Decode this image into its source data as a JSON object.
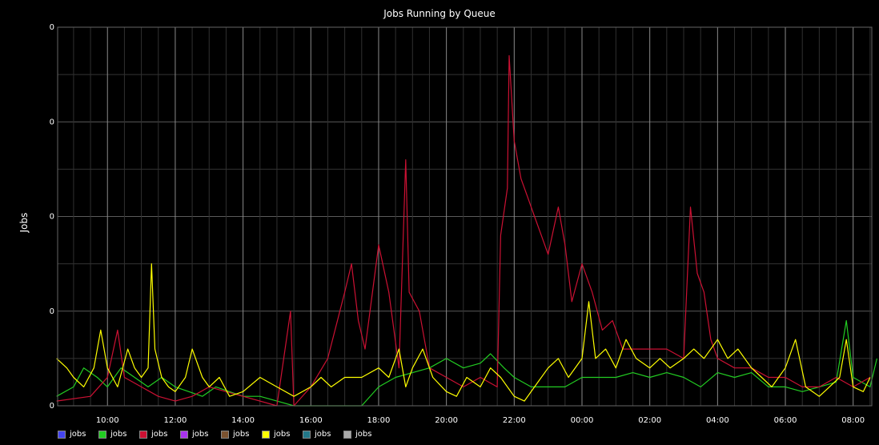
{
  "chart_data": {
    "type": "line",
    "title": "Jobs Running by Queue",
    "ylabel": "Jobs",
    "y_tick_labels": [
      "0",
      "0",
      "0",
      "0",
      "0"
    ],
    "x_tick_labels": [
      "10:00",
      "12:00",
      "14:00",
      "16:00",
      "18:00",
      "20:00",
      "22:00",
      "00:00",
      "02:00",
      "04:00",
      "06:00",
      "08:00"
    ],
    "ylim": [
      0,
      4
    ],
    "background": "#000000",
    "grid": true,
    "legend_position": "bottom-left",
    "series": [
      {
        "name": "jobs",
        "color": "#4444ee",
        "values": []
      },
      {
        "name": "jobs",
        "color": "#22cc22",
        "values": [
          [
            8.5,
            0.1
          ],
          [
            9.0,
            0.2
          ],
          [
            9.3,
            0.4
          ],
          [
            9.7,
            0.3
          ],
          [
            10.0,
            0.2
          ],
          [
            10.4,
            0.4
          ],
          [
            10.8,
            0.3
          ],
          [
            11.2,
            0.2
          ],
          [
            11.6,
            0.3
          ],
          [
            12.0,
            0.2
          ],
          [
            12.4,
            0.15
          ],
          [
            12.8,
            0.1
          ],
          [
            13.2,
            0.2
          ],
          [
            13.6,
            0.15
          ],
          [
            14.0,
            0.1
          ],
          [
            14.5,
            0.1
          ],
          [
            15.0,
            0.05
          ],
          [
            15.5,
            0.0
          ],
          [
            16.0,
            0.0
          ],
          [
            16.5,
            0.0
          ],
          [
            17.0,
            0.0
          ],
          [
            17.5,
            0.0
          ],
          [
            18.0,
            0.2
          ],
          [
            18.5,
            0.3
          ],
          [
            19.0,
            0.35
          ],
          [
            19.5,
            0.4
          ],
          [
            20.0,
            0.5
          ],
          [
            20.5,
            0.4
          ],
          [
            21.0,
            0.45
          ],
          [
            21.3,
            0.55
          ],
          [
            21.7,
            0.4
          ],
          [
            22.0,
            0.3
          ],
          [
            22.5,
            0.2
          ],
          [
            23.0,
            0.2
          ],
          [
            23.5,
            0.2
          ],
          [
            24.0,
            0.3
          ],
          [
            24.5,
            0.3
          ],
          [
            25.0,
            0.3
          ],
          [
            25.5,
            0.35
          ],
          [
            26.0,
            0.3
          ],
          [
            26.5,
            0.35
          ],
          [
            27.0,
            0.3
          ],
          [
            27.5,
            0.2
          ],
          [
            28.0,
            0.35
          ],
          [
            28.5,
            0.3
          ],
          [
            29.0,
            0.35
          ],
          [
            29.5,
            0.2
          ],
          [
            30.0,
            0.2
          ],
          [
            30.5,
            0.15
          ],
          [
            31.0,
            0.2
          ],
          [
            31.5,
            0.25
          ],
          [
            31.8,
            0.9
          ],
          [
            32.0,
            0.3
          ],
          [
            32.5,
            0.2
          ],
          [
            32.7,
            0.5
          ]
        ]
      },
      {
        "name": "jobs",
        "color": "#cc1133",
        "values": [
          [
            8.5,
            0.05
          ],
          [
            9.5,
            0.1
          ],
          [
            10.0,
            0.3
          ],
          [
            10.3,
            0.8
          ],
          [
            10.5,
            0.3
          ],
          [
            11.0,
            0.2
          ],
          [
            11.5,
            0.1
          ],
          [
            12.0,
            0.05
          ],
          [
            12.5,
            0.1
          ],
          [
            13.0,
            0.2
          ],
          [
            14.0,
            0.1
          ],
          [
            15.0,
            0.0
          ],
          [
            15.4,
            1.0
          ],
          [
            15.5,
            0.0
          ],
          [
            16.0,
            0.2
          ],
          [
            16.5,
            0.5
          ],
          [
            17.0,
            1.2
          ],
          [
            17.2,
            1.5
          ],
          [
            17.4,
            0.9
          ],
          [
            17.6,
            0.6
          ],
          [
            18.0,
            1.7
          ],
          [
            18.3,
            1.2
          ],
          [
            18.6,
            0.4
          ],
          [
            18.8,
            2.6
          ],
          [
            18.9,
            1.2
          ],
          [
            19.2,
            1.0
          ],
          [
            19.5,
            0.4
          ],
          [
            20.0,
            0.3
          ],
          [
            20.5,
            0.2
          ],
          [
            21.0,
            0.3
          ],
          [
            21.5,
            0.2
          ],
          [
            21.6,
            1.8
          ],
          [
            21.8,
            2.3
          ],
          [
            21.85,
            3.7
          ],
          [
            22.0,
            2.8
          ],
          [
            22.2,
            2.4
          ],
          [
            22.4,
            2.2
          ],
          [
            22.6,
            2.0
          ],
          [
            22.8,
            1.8
          ],
          [
            23.0,
            1.6
          ],
          [
            23.3,
            2.1
          ],
          [
            23.5,
            1.7
          ],
          [
            23.7,
            1.1
          ],
          [
            24.0,
            1.5
          ],
          [
            24.3,
            1.2
          ],
          [
            24.6,
            0.8
          ],
          [
            24.9,
            0.9
          ],
          [
            25.2,
            0.6
          ],
          [
            25.5,
            0.6
          ],
          [
            26.0,
            0.6
          ],
          [
            26.5,
            0.6
          ],
          [
            27.0,
            0.5
          ],
          [
            27.2,
            2.1
          ],
          [
            27.4,
            1.4
          ],
          [
            27.6,
            1.2
          ],
          [
            27.8,
            0.7
          ],
          [
            28.0,
            0.5
          ],
          [
            28.5,
            0.4
          ],
          [
            29.0,
            0.4
          ],
          [
            29.5,
            0.3
          ],
          [
            30.0,
            0.3
          ],
          [
            30.5,
            0.2
          ],
          [
            31.0,
            0.2
          ],
          [
            31.5,
            0.3
          ],
          [
            32.0,
            0.2
          ],
          [
            32.5,
            0.3
          ]
        ]
      },
      {
        "name": "jobs",
        "color": "#aa33ee",
        "values": []
      },
      {
        "name": "jobs",
        "color": "#7a5230",
        "values": []
      },
      {
        "name": "jobs",
        "color": "#ffff00",
        "values": [
          [
            8.5,
            0.5
          ],
          [
            8.8,
            0.4
          ],
          [
            9.0,
            0.3
          ],
          [
            9.3,
            0.2
          ],
          [
            9.6,
            0.4
          ],
          [
            9.8,
            0.8
          ],
          [
            10.0,
            0.4
          ],
          [
            10.3,
            0.2
          ],
          [
            10.6,
            0.6
          ],
          [
            10.8,
            0.4
          ],
          [
            11.0,
            0.3
          ],
          [
            11.2,
            0.4
          ],
          [
            11.3,
            1.5
          ],
          [
            11.4,
            0.6
          ],
          [
            11.6,
            0.3
          ],
          [
            11.8,
            0.2
          ],
          [
            12.0,
            0.15
          ],
          [
            12.3,
            0.3
          ],
          [
            12.5,
            0.6
          ],
          [
            12.8,
            0.3
          ],
          [
            13.0,
            0.2
          ],
          [
            13.3,
            0.3
          ],
          [
            13.6,
            0.1
          ],
          [
            14.0,
            0.15
          ],
          [
            14.5,
            0.3
          ],
          [
            15.0,
            0.2
          ],
          [
            15.5,
            0.1
          ],
          [
            16.0,
            0.2
          ],
          [
            16.3,
            0.3
          ],
          [
            16.6,
            0.2
          ],
          [
            17.0,
            0.3
          ],
          [
            17.5,
            0.3
          ],
          [
            18.0,
            0.4
          ],
          [
            18.3,
            0.3
          ],
          [
            18.6,
            0.6
          ],
          [
            18.8,
            0.2
          ],
          [
            19.0,
            0.4
          ],
          [
            19.3,
            0.6
          ],
          [
            19.6,
            0.3
          ],
          [
            20.0,
            0.15
          ],
          [
            20.3,
            0.1
          ],
          [
            20.6,
            0.3
          ],
          [
            21.0,
            0.2
          ],
          [
            21.3,
            0.4
          ],
          [
            21.6,
            0.3
          ],
          [
            22.0,
            0.1
          ],
          [
            22.3,
            0.05
          ],
          [
            22.6,
            0.2
          ],
          [
            23.0,
            0.4
          ],
          [
            23.3,
            0.5
          ],
          [
            23.6,
            0.3
          ],
          [
            24.0,
            0.5
          ],
          [
            24.2,
            1.1
          ],
          [
            24.4,
            0.5
          ],
          [
            24.7,
            0.6
          ],
          [
            25.0,
            0.4
          ],
          [
            25.3,
            0.7
          ],
          [
            25.6,
            0.5
          ],
          [
            26.0,
            0.4
          ],
          [
            26.3,
            0.5
          ],
          [
            26.6,
            0.4
          ],
          [
            27.0,
            0.5
          ],
          [
            27.3,
            0.6
          ],
          [
            27.6,
            0.5
          ],
          [
            28.0,
            0.7
          ],
          [
            28.3,
            0.5
          ],
          [
            28.6,
            0.6
          ],
          [
            29.0,
            0.4
          ],
          [
            29.3,
            0.3
          ],
          [
            29.6,
            0.2
          ],
          [
            30.0,
            0.4
          ],
          [
            30.3,
            0.7
          ],
          [
            30.6,
            0.2
          ],
          [
            31.0,
            0.1
          ],
          [
            31.3,
            0.2
          ],
          [
            31.6,
            0.3
          ],
          [
            31.8,
            0.7
          ],
          [
            32.0,
            0.2
          ],
          [
            32.3,
            0.15
          ],
          [
            32.5,
            0.3
          ]
        ]
      },
      {
        "name": "jobs",
        "color": "#227788",
        "values": []
      },
      {
        "name": "jobs",
        "color": "#aaaaaa",
        "values": []
      }
    ]
  }
}
